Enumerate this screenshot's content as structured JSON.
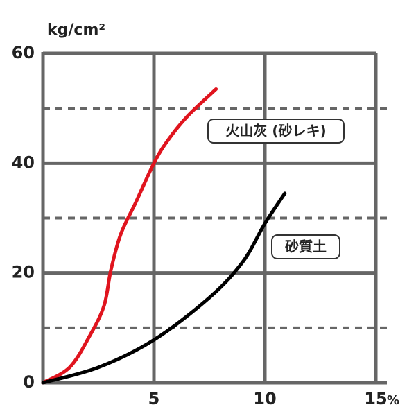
{
  "chart_data": {
    "type": "line",
    "ylabel": "kg/cm²",
    "xlabel": "%",
    "xlim": [
      0,
      15.5
    ],
    "ylim": [
      0,
      60
    ],
    "xticks": [
      5,
      10,
      15
    ],
    "yticks": [
      0,
      20,
      40,
      60
    ],
    "yminor": [
      10,
      30,
      50
    ],
    "grid": true,
    "series": [
      {
        "name": "火山灰 (砂レキ)",
        "color": "#e0141e",
        "x": [
          0,
          1.2,
          2.1,
          2.75,
          3.06,
          3.5,
          4.2,
          5,
          5.6,
          6.5,
          7.8
        ],
        "values": [
          0,
          2.8,
          8.5,
          14,
          20.5,
          27,
          33,
          40,
          44,
          48.5,
          53.5
        ]
      },
      {
        "name": "砂質土",
        "color": "#000000",
        "x": [
          0,
          2.5,
          5,
          7.5,
          9,
          10,
          10.9
        ],
        "values": [
          0,
          2.8,
          7.8,
          15.5,
          22,
          29,
          34.5
        ]
      }
    ]
  }
}
